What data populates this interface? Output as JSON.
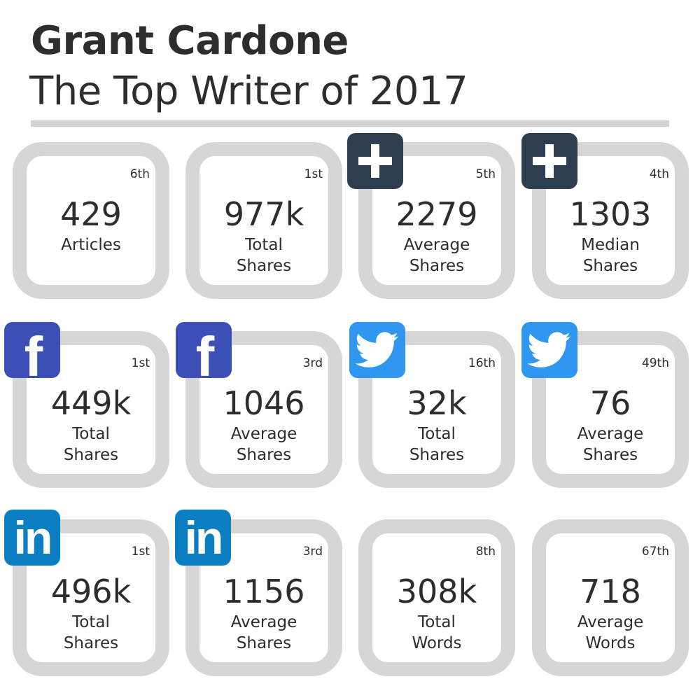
{
  "header": {
    "title": "Grant Cardone",
    "subtitle": "The Top Writer of 2017"
  },
  "cards": [
    {
      "rank": "6th",
      "value": "429",
      "label_line1": "Articles",
      "label_line2": "",
      "icon": "none"
    },
    {
      "rank": "1st",
      "value": "977k",
      "label_line1": "Total",
      "label_line2": "Shares",
      "icon": "none"
    },
    {
      "rank": "5th",
      "value": "2279",
      "label_line1": "Average",
      "label_line2": "Shares",
      "icon": "plus-icon"
    },
    {
      "rank": "4th",
      "value": "1303",
      "label_line1": "Median",
      "label_line2": "Shares",
      "icon": "plus-icon"
    },
    {
      "rank": "1st",
      "value": "449k",
      "label_line1": "Total",
      "label_line2": "Shares",
      "icon": "facebook-icon"
    },
    {
      "rank": "3rd",
      "value": "1046",
      "label_line1": "Average",
      "label_line2": "Shares",
      "icon": "facebook-icon"
    },
    {
      "rank": "16th",
      "value": "32k",
      "label_line1": "Total",
      "label_line2": "Shares",
      "icon": "twitter-icon"
    },
    {
      "rank": "49th",
      "value": "76",
      "label_line1": "Average",
      "label_line2": "Shares",
      "icon": "twitter-icon"
    },
    {
      "rank": "1st",
      "value": "496k",
      "label_line1": "Total",
      "label_line2": "Shares",
      "icon": "linkedin-icon"
    },
    {
      "rank": "3rd",
      "value": "1156",
      "label_line1": "Average",
      "label_line2": "Shares",
      "icon": "linkedin-icon"
    },
    {
      "rank": "8th",
      "value": "308k",
      "label_line1": "Total",
      "label_line2": "Words",
      "icon": "none"
    },
    {
      "rank": "67th",
      "value": "718",
      "label_line1": "Average",
      "label_line2": "Words",
      "icon": "none"
    }
  ],
  "icons": {
    "facebook_glyph": "f",
    "linkedin_glyph": "in"
  },
  "colors": {
    "card_border": "#d6d6d6",
    "plus_badge": "#2d3e50",
    "facebook": "#3b4fb6",
    "twitter": "#2f97ef",
    "linkedin": "#0b7ec2",
    "text": "#2d2d2d"
  }
}
